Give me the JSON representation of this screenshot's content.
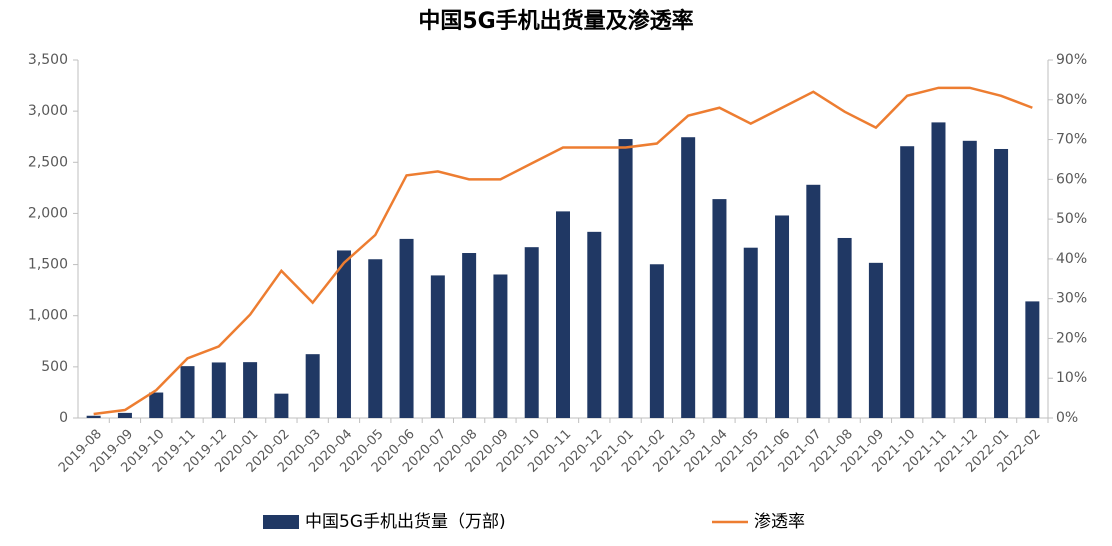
{
  "chart_data": {
    "type": "bar_line",
    "title": "中国5G手机出货量及渗透率",
    "categories": [
      "2019-08",
      "2019-09",
      "2019-10",
      "2019-11",
      "2019-12",
      "2020-01",
      "2020-02",
      "2020-03",
      "2020-04",
      "2020-05",
      "2020-06",
      "2020-07",
      "2020-08",
      "2020-09",
      "2020-10",
      "2020-11",
      "2020-12",
      "2021-01",
      "2021-02",
      "2021-03",
      "2021-04",
      "2021-05",
      "2021-06",
      "2021-07",
      "2021-08",
      "2021-09",
      "2021-10",
      "2021-11",
      "2021-12",
      "2022-01",
      "2022-02"
    ],
    "series": [
      {
        "name": "中国5G手机出货量（万部)",
        "type": "bar",
        "color": "#203864",
        "values": [
          22,
          50,
          249,
          507,
          543,
          546,
          238,
          624,
          1638,
          1552,
          1751,
          1394,
          1613,
          1403,
          1670,
          2020,
          1820,
          2727,
          1503,
          2745,
          2140,
          1665,
          1980,
          2280,
          1760,
          1517,
          2657,
          2890,
          2710,
          2630,
          1140
        ]
      },
      {
        "name": "渗透率",
        "type": "line",
        "axis": "y2",
        "color": "#ed7d31",
        "values": [
          1,
          2,
          7,
          15,
          18,
          26,
          37,
          29,
          39,
          46,
          61,
          62,
          60,
          60,
          64,
          68,
          68,
          68,
          69,
          76,
          78,
          74,
          78,
          82,
          77,
          73,
          81,
          83,
          83,
          81,
          78
        ]
      }
    ],
    "ylim": [
      0,
      3500
    ],
    "yticks": [
      0,
      500,
      {
        "value": 1000,
        "label": "1,000"
      },
      {
        "value": 1500,
        "label": "1,500"
      },
      {
        "value": 2000,
        "label": "2,000"
      },
      {
        "value": 2500,
        "label": "2,500"
      },
      {
        "value": 3000,
        "label": "3,000"
      },
      {
        "value": 3500,
        "label": "3,500"
      }
    ],
    "y2lim": [
      0,
      90
    ],
    "y2ticks": [
      {
        "value": 0,
        "label": "0%"
      },
      {
        "value": 10,
        "label": "10%"
      },
      {
        "value": 20,
        "label": "20%"
      },
      {
        "value": 30,
        "label": "30%"
      },
      {
        "value": 40,
        "label": "40%"
      },
      {
        "value": 50,
        "label": "50%"
      },
      {
        "value": 60,
        "label": "60%"
      },
      {
        "value": 70,
        "label": "70%"
      },
      {
        "value": 80,
        "label": "80%"
      },
      {
        "value": 90,
        "label": "90%"
      }
    ],
    "grid": false
  }
}
